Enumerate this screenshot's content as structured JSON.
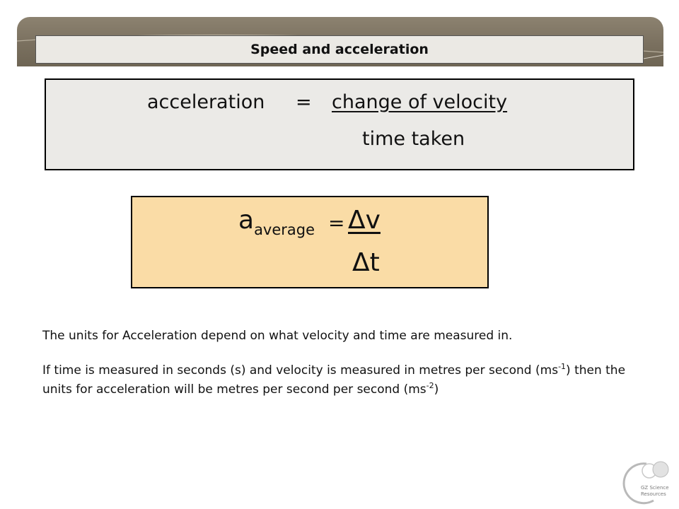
{
  "slide": {
    "title": "Speed and acceleration"
  },
  "word_equation": {
    "lhs": "acceleration",
    "equals": "=",
    "numerator": "change of velocity",
    "denominator": "time taken"
  },
  "symbol_equation": {
    "symbol": "a",
    "subscript": "average",
    "equals": "=",
    "numerator": "Δv",
    "denominator": "Δt"
  },
  "text": {
    "p1": "The units for Acceleration depend on what velocity and time are measured in.",
    "p2_a": "If time is measured in seconds (s) and velocity is measured in metres per second (ms",
    "p2_sup1": "-1",
    "p2_b": ") then the units for acceleration will be metres per second per second (ms",
    "p2_sup2": "-2",
    "p2_c": ")"
  },
  "logo": {
    "line1": "GZ Science",
    "line2": "Resources"
  },
  "colors": {
    "header_band": "#7a705f",
    "title_bar": "#ebe9e4",
    "word_box": "#ebeae7",
    "symbol_box": "#fadca6"
  }
}
